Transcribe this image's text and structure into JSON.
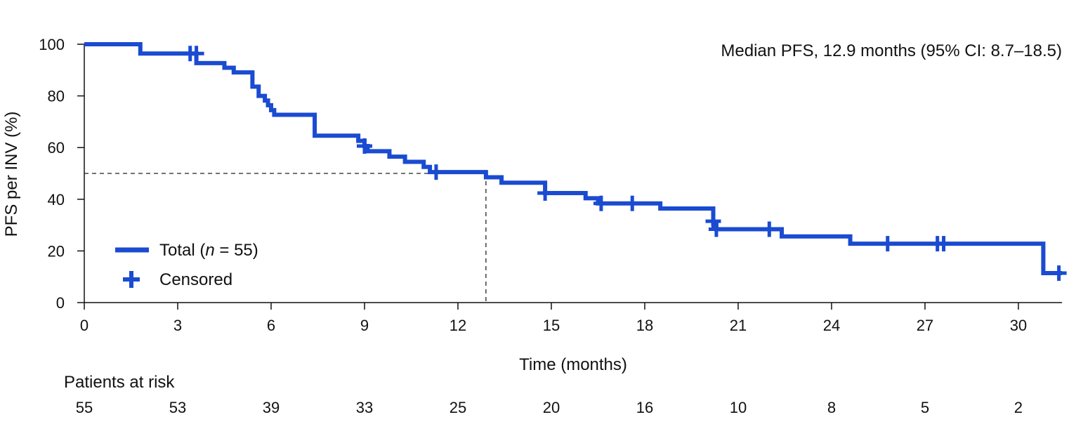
{
  "chart_data": {
    "type": "line",
    "subtype": "kaplan-meier",
    "ylabel": "PFS per INV (%)",
    "xlabel": "Time (months)",
    "annotation": "Median PFS, 12.9 months (95% CI: 8.7–18.5)",
    "median": {
      "x": 12.9,
      "y": 50
    },
    "xlim": [
      0,
      31.4
    ],
    "ylim": [
      0,
      100
    ],
    "x_ticks": [
      0,
      3,
      6,
      9,
      12,
      15,
      18,
      21,
      24,
      27,
      30
    ],
    "y_ticks": [
      0,
      20,
      40,
      60,
      80,
      100
    ],
    "grid": false,
    "legend": {
      "placement": "bottom-left",
      "items": [
        {
          "key": "total",
          "label_prefix": "Total (",
          "label_italic": "n",
          "label_suffix": " = 55)"
        },
        {
          "key": "censored",
          "label": "Censored"
        }
      ]
    },
    "series": [
      {
        "name": "Total",
        "color": "#1a4bd1",
        "steps": [
          [
            0,
            100
          ],
          [
            1.8,
            96.4
          ],
          [
            3.6,
            92.7
          ],
          [
            4.5,
            90.9
          ],
          [
            4.8,
            89.1
          ],
          [
            5.4,
            83.6
          ],
          [
            5.6,
            80.0
          ],
          [
            5.8,
            78.2
          ],
          [
            5.9,
            76.4
          ],
          [
            6.0,
            74.5
          ],
          [
            6.1,
            72.7
          ],
          [
            7.4,
            64.6
          ],
          [
            8.8,
            62.6
          ],
          [
            9.0,
            60.6
          ],
          [
            9.1,
            58.6
          ],
          [
            9.8,
            56.5
          ],
          [
            10.3,
            54.5
          ],
          [
            10.9,
            52.5
          ],
          [
            11.1,
            50.5
          ],
          [
            12.9,
            48.5
          ],
          [
            13.4,
            46.4
          ],
          [
            14.8,
            42.4
          ],
          [
            16.1,
            40.4
          ],
          [
            16.5,
            38.4
          ],
          [
            18.5,
            36.4
          ],
          [
            20.2,
            30.3
          ],
          [
            20.3,
            28.4
          ],
          [
            22.4,
            25.6
          ],
          [
            24.6,
            22.8
          ],
          [
            30.8,
            11.4
          ],
          [
            31.4,
            11.4
          ]
        ]
      }
    ],
    "censored": [
      [
        3.4,
        96.4
      ],
      [
        3.6,
        96.4
      ],
      [
        9.0,
        60.6
      ],
      [
        11.3,
        50.5
      ],
      [
        14.8,
        42.4
      ],
      [
        16.6,
        38.4
      ],
      [
        17.6,
        38.4
      ],
      [
        20.2,
        31.5
      ],
      [
        20.3,
        28.4
      ],
      [
        22.0,
        28.4
      ],
      [
        25.8,
        22.8
      ],
      [
        27.4,
        22.8
      ],
      [
        27.6,
        22.8
      ],
      [
        31.3,
        11.4
      ]
    ],
    "at_risk": {
      "label": "Patients at risk",
      "times": [
        0,
        3,
        6,
        9,
        12,
        15,
        18,
        21,
        24,
        27,
        30
      ],
      "counts": [
        55,
        53,
        39,
        33,
        25,
        20,
        16,
        10,
        8,
        5,
        2
      ]
    }
  }
}
